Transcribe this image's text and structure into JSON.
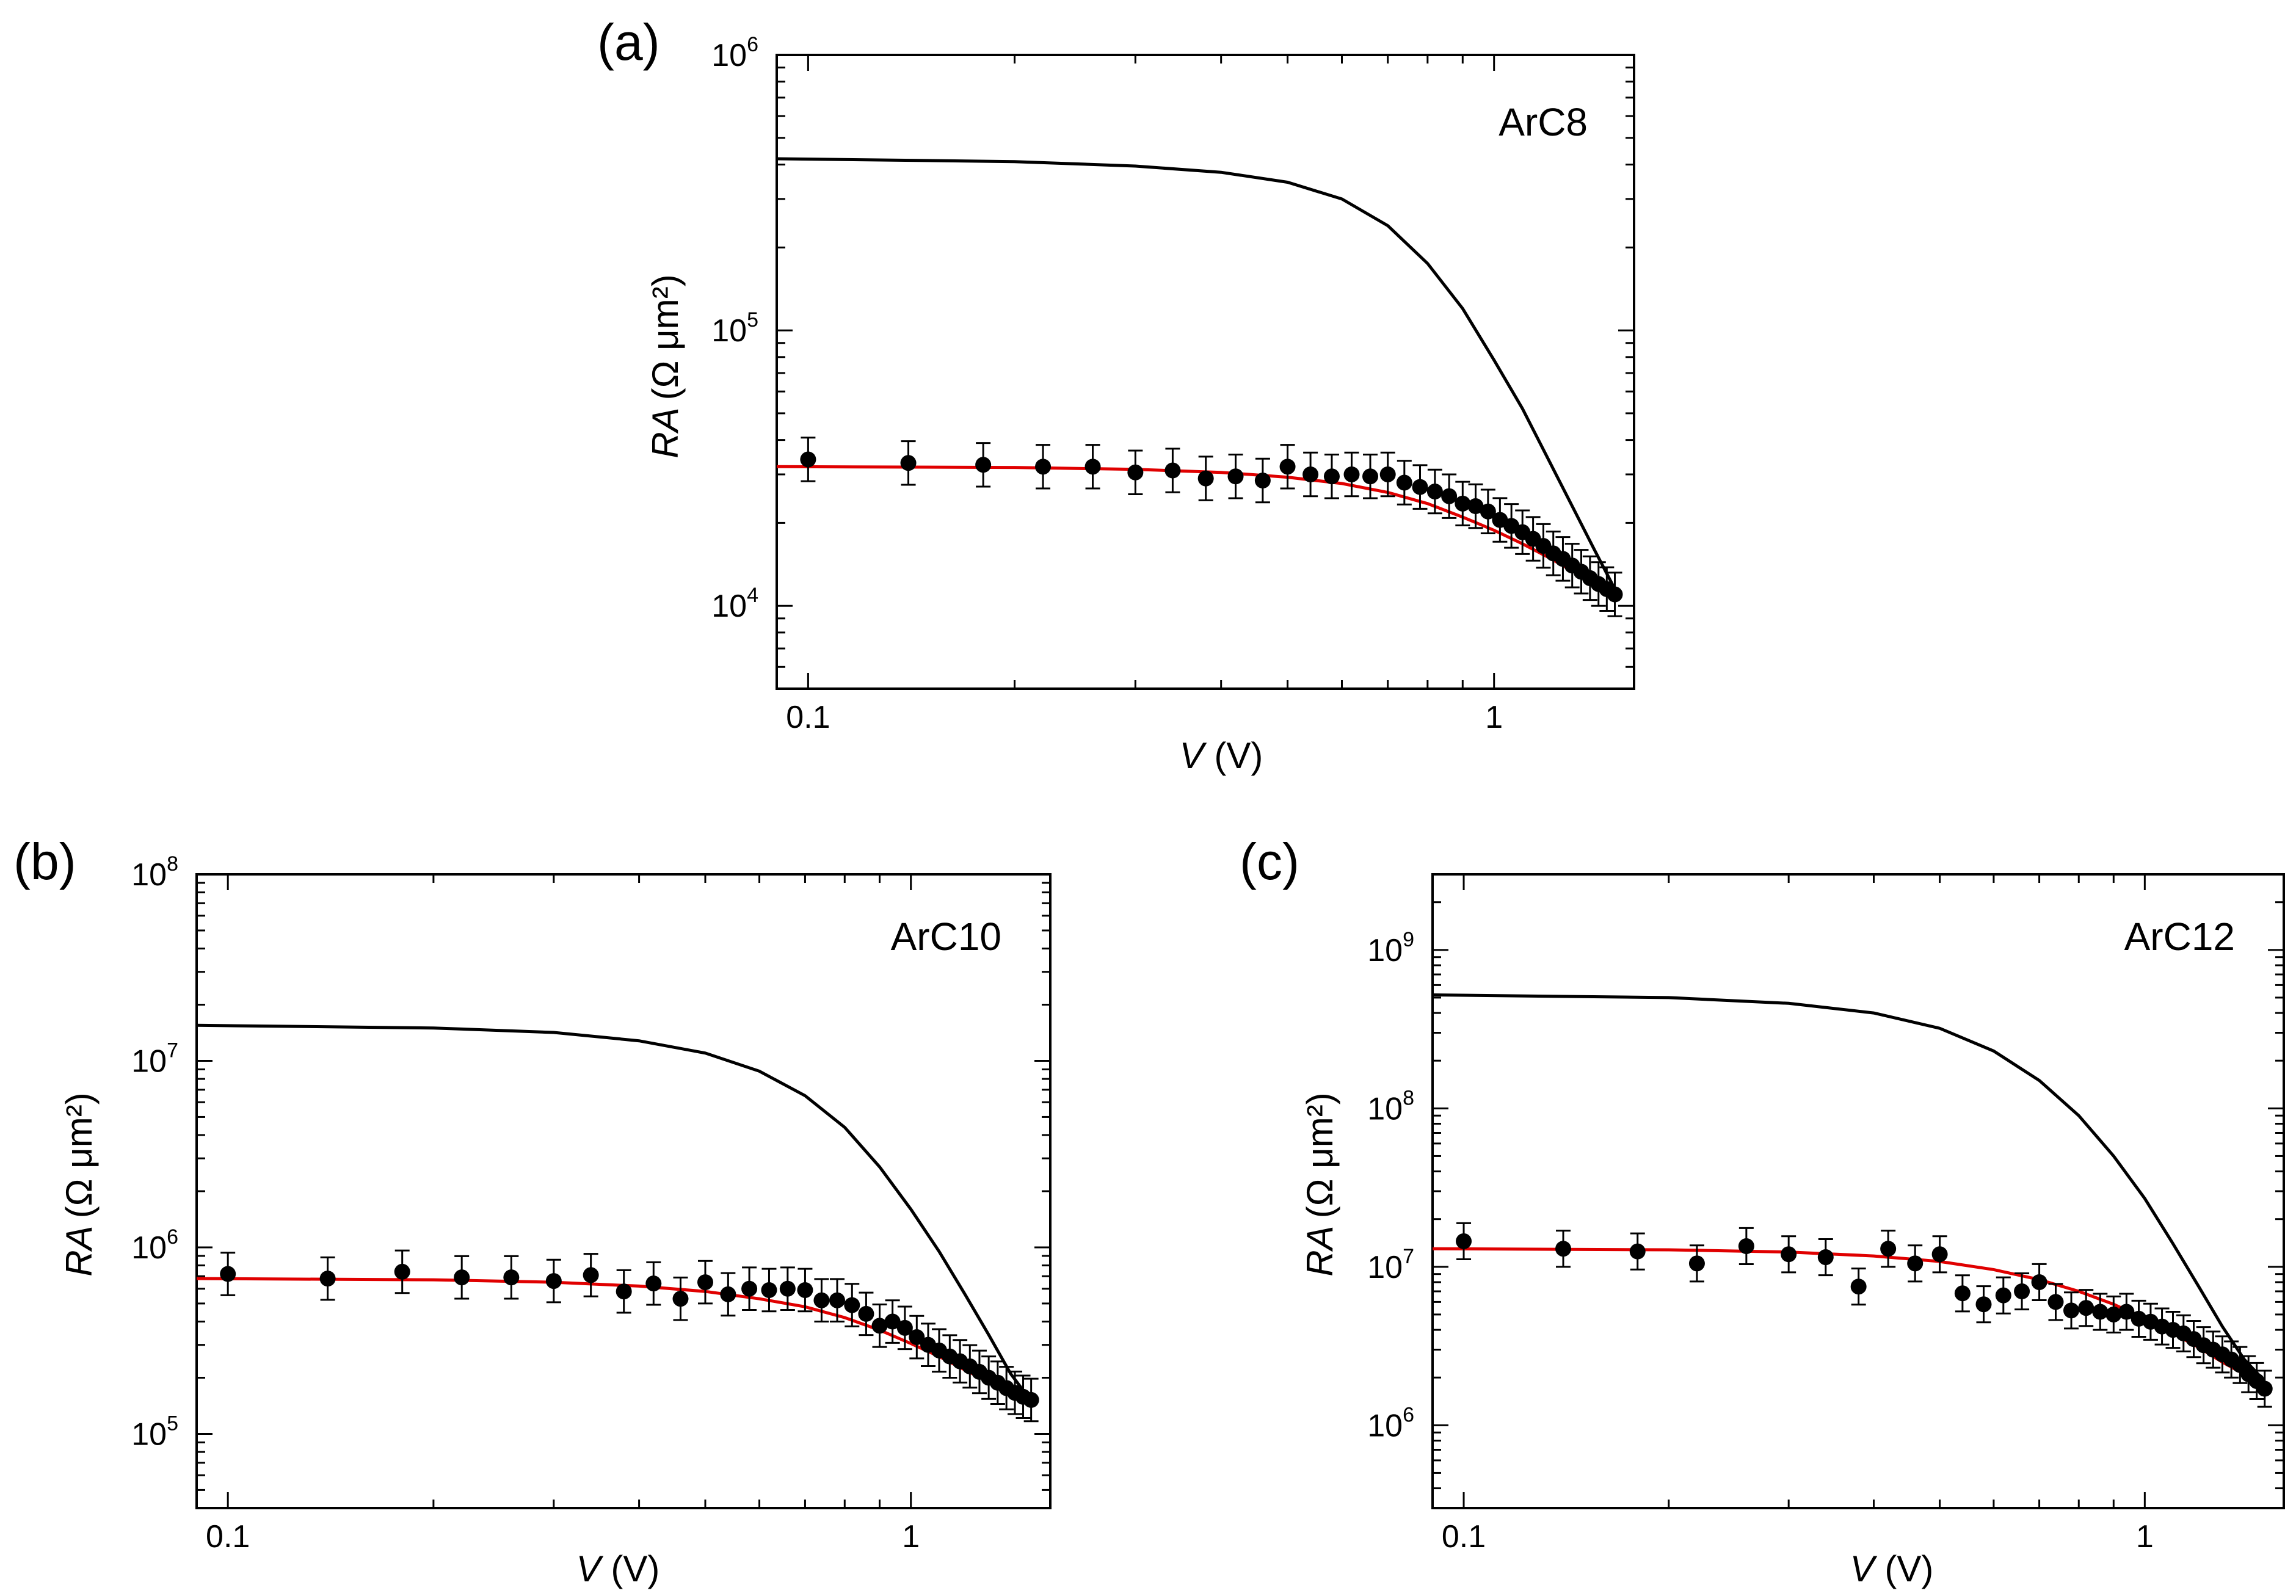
{
  "colors": {
    "model_initial": "#000000",
    "fit": "#e00000",
    "data_points": "#000000",
    "frame": "#000000"
  },
  "chart_data": [
    {
      "type": "scatter",
      "panel_label": "(a)",
      "sample": "ArC8",
      "xlabel_var": "V",
      "xlabel_unit": " (V)",
      "ylabel_var": "RA",
      "ylabel_unit": "(Ω μm²)",
      "xscale": "log",
      "yscale": "log",
      "xlim": [
        0.09,
        1.6
      ],
      "ylim": [
        5000,
        1000000
      ],
      "x_tick_labels": [
        {
          "value": 0.1,
          "label": "0.1"
        },
        {
          "value": 1,
          "label": "1"
        }
      ],
      "y_tick_labels": [
        {
          "value": 10000,
          "base": "10",
          "exp": "4"
        },
        {
          "value": 100000,
          "base": "10",
          "exp": "5"
        },
        {
          "value": 1000000,
          "base": "10",
          "exp": "6"
        }
      ],
      "series": [
        {
          "name": "model",
          "kind": "line",
          "color": "#000000",
          "x": [
            0.09,
            0.2,
            0.3,
            0.4,
            0.5,
            0.6,
            0.7,
            0.8,
            0.9,
            1.0,
            1.1,
            1.2,
            1.3,
            1.4,
            1.5
          ],
          "y": [
            420000,
            410000,
            395000,
            375000,
            345000,
            300000,
            240000,
            175000,
            120000,
            78000,
            52000,
            34000,
            23000,
            16000,
            11500
          ]
        },
        {
          "name": "fit",
          "kind": "line",
          "color": "#e00000",
          "x": [
            0.09,
            0.2,
            0.3,
            0.4,
            0.5,
            0.6,
            0.7,
            0.8,
            0.9,
            1.0,
            1.1,
            1.2,
            1.3,
            1.4,
            1.5
          ],
          "y": [
            32000,
            31800,
            31300,
            30500,
            29300,
            27800,
            25800,
            23500,
            21000,
            18800,
            16800,
            15000,
            13400,
            12000,
            10700
          ]
        },
        {
          "name": "measured",
          "kind": "points",
          "color": "#000000",
          "err_frac": 0.2,
          "x": [
            0.1,
            0.14,
            0.18,
            0.22,
            0.26,
            0.3,
            0.34,
            0.38,
            0.42,
            0.46,
            0.5,
            0.54,
            0.58,
            0.62,
            0.66,
            0.7,
            0.74,
            0.78,
            0.82,
            0.86,
            0.9,
            0.94,
            0.98,
            1.02,
            1.06,
            1.1,
            1.14,
            1.18,
            1.22,
            1.26,
            1.3,
            1.34,
            1.38,
            1.42,
            1.46,
            1.5
          ],
          "y": [
            34000,
            33000,
            32500,
            32000,
            32000,
            30500,
            31000,
            29000,
            29500,
            28500,
            32000,
            30000,
            29500,
            30000,
            29500,
            30000,
            28000,
            27000,
            26000,
            25000,
            23500,
            23000,
            22000,
            20500,
            19500,
            18500,
            17500,
            16500,
            15500,
            14800,
            14000,
            13300,
            12600,
            12000,
            11500,
            11000
          ]
        }
      ]
    },
    {
      "type": "scatter",
      "panel_label": "(b)",
      "sample": "ArC10",
      "xlabel_var": "V",
      "xlabel_unit": " (V)",
      "ylabel_var": "RA",
      "ylabel_unit": "(Ω μm²)",
      "xscale": "log",
      "yscale": "log",
      "xlim": [
        0.09,
        1.6
      ],
      "ylim": [
        40000,
        100000000
      ],
      "x_tick_labels": [
        {
          "value": 0.1,
          "label": "0.1"
        },
        {
          "value": 1,
          "label": "1"
        }
      ],
      "y_tick_labels": [
        {
          "value": 100000,
          "base": "10",
          "exp": "5"
        },
        {
          "value": 1000000,
          "base": "10",
          "exp": "6"
        },
        {
          "value": 10000000,
          "base": "10",
          "exp": "7"
        },
        {
          "value": 100000000,
          "base": "10",
          "exp": "8"
        }
      ],
      "series": [
        {
          "name": "model",
          "kind": "line",
          "color": "#000000",
          "x": [
            0.09,
            0.2,
            0.3,
            0.4,
            0.5,
            0.6,
            0.7,
            0.8,
            0.9,
            1.0,
            1.1,
            1.2,
            1.3,
            1.4,
            1.5
          ],
          "y": [
            15500000,
            15000000,
            14200000,
            12800000,
            11000000,
            8800000,
            6500000,
            4400000,
            2700000,
            1600000,
            950000,
            560000,
            340000,
            210000,
            150000
          ]
        },
        {
          "name": "fit",
          "kind": "line",
          "color": "#e00000",
          "x": [
            0.09,
            0.2,
            0.3,
            0.4,
            0.5,
            0.6,
            0.7,
            0.8,
            0.9,
            1.0,
            1.1,
            1.2,
            1.3,
            1.4,
            1.5
          ],
          "y": [
            680000,
            670000,
            650000,
            620000,
            580000,
            530000,
            480000,
            420000,
            360000,
            305000,
            260000,
            220000,
            190000,
            165000,
            145000
          ]
        },
        {
          "name": "measured",
          "kind": "points",
          "color": "#000000",
          "err_frac": 0.3,
          "x": [
            0.1,
            0.14,
            0.18,
            0.22,
            0.26,
            0.3,
            0.34,
            0.38,
            0.42,
            0.46,
            0.5,
            0.54,
            0.58,
            0.62,
            0.66,
            0.7,
            0.74,
            0.78,
            0.82,
            0.86,
            0.9,
            0.94,
            0.98,
            1.02,
            1.06,
            1.1,
            1.14,
            1.18,
            1.22,
            1.26,
            1.3,
            1.34,
            1.38,
            1.42,
            1.46,
            1.5
          ],
          "y": [
            720000,
            680000,
            740000,
            690000,
            690000,
            660000,
            710000,
            580000,
            640000,
            530000,
            650000,
            560000,
            600000,
            590000,
            600000,
            590000,
            520000,
            520000,
            490000,
            440000,
            380000,
            400000,
            370000,
            330000,
            300000,
            280000,
            260000,
            245000,
            230000,
            215000,
            200000,
            188000,
            176000,
            166000,
            158000,
            152000
          ]
        }
      ]
    },
    {
      "type": "scatter",
      "panel_label": "(c)",
      "sample": "ArC12",
      "xlabel_var": "V",
      "xlabel_unit": " (V)",
      "ylabel_var": "RA",
      "ylabel_unit": "(Ω μm²)",
      "xscale": "log",
      "yscale": "log",
      "xlim": [
        0.09,
        1.6
      ],
      "ylim": [
        300000,
        3000000000
      ],
      "x_tick_labels": [
        {
          "value": 0.1,
          "label": "0.1"
        },
        {
          "value": 1,
          "label": "1"
        }
      ],
      "y_tick_labels": [
        {
          "value": 1000000,
          "base": "10",
          "exp": "6"
        },
        {
          "value": 10000000,
          "base": "10",
          "exp": "7"
        },
        {
          "value": 100000000,
          "base": "10",
          "exp": "8"
        },
        {
          "value": 1000000000,
          "base": "10",
          "exp": "9"
        }
      ],
      "series": [
        {
          "name": "model",
          "kind": "line",
          "color": "#000000",
          "x": [
            0.09,
            0.2,
            0.3,
            0.4,
            0.5,
            0.6,
            0.7,
            0.8,
            0.9,
            1.0,
            1.1,
            1.2,
            1.3,
            1.4,
            1.5
          ],
          "y": [
            520000000,
            500000000,
            460000000,
            400000000,
            320000000,
            230000000,
            150000000,
            90000000,
            50000000,
            27000000,
            14000000,
            7500000,
            4200000,
            2600000,
            1900000
          ]
        },
        {
          "name": "fit",
          "kind": "line",
          "color": "#e00000",
          "x": [
            0.09,
            0.2,
            0.3,
            0.4,
            0.5,
            0.6,
            0.7,
            0.8,
            0.9,
            1.0,
            1.1,
            1.2,
            1.3,
            1.4,
            1.5
          ],
          "y": [
            13000000,
            12800000,
            12400000,
            11700000,
            10800000,
            9600000,
            8300000,
            7000000,
            5800000,
            4700000,
            3800000,
            3100000,
            2500000,
            2100000,
            1800000
          ]
        },
        {
          "name": "measured",
          "kind": "points",
          "color": "#000000",
          "err_frac": 0.3,
          "x": [
            0.1,
            0.14,
            0.18,
            0.22,
            0.26,
            0.3,
            0.34,
            0.38,
            0.42,
            0.46,
            0.5,
            0.54,
            0.58,
            0.62,
            0.66,
            0.7,
            0.74,
            0.78,
            0.82,
            0.86,
            0.9,
            0.94,
            0.98,
            1.02,
            1.06,
            1.1,
            1.14,
            1.18,
            1.22,
            1.26,
            1.3,
            1.34,
            1.38,
            1.42,
            1.46,
            1.5
          ],
          "y": [
            14500000,
            13000000,
            12500000,
            10500000,
            13500000,
            12000000,
            11500000,
            7500000,
            13000000,
            10500000,
            12000000,
            6800000,
            5800000,
            6600000,
            7000000,
            8000000,
            6000000,
            5300000,
            5500000,
            5200000,
            5000000,
            5200000,
            4700000,
            4500000,
            4200000,
            4000000,
            3800000,
            3500000,
            3200000,
            3000000,
            2800000,
            2600000,
            2400000,
            2100000,
            1900000,
            1700000
          ]
        }
      ]
    }
  ]
}
